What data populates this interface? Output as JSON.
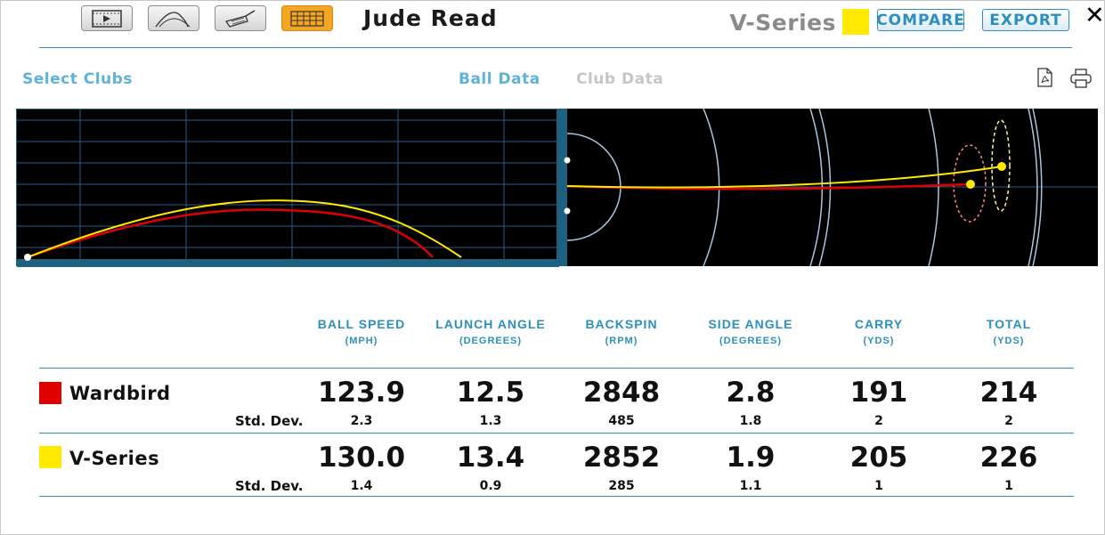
{
  "toolbar": {
    "buttons": [
      {
        "name": "video-view-button",
        "icon": "film-strip-icon",
        "active": false
      },
      {
        "name": "trajectory-view-button",
        "icon": "trajectory-arc-icon",
        "active": false
      },
      {
        "name": "club-view-button",
        "icon": "club-head-icon",
        "active": false
      },
      {
        "name": "table-view-button",
        "icon": "data-grid-icon",
        "active": true
      }
    ],
    "active_color": "#f6a623"
  },
  "header": {
    "player_name": "Jude Read",
    "club_name": "V-Series",
    "club_color": "#ffea00",
    "compare_label": "COMPARE",
    "export_label": "EXPORT",
    "close_glyph": "✕"
  },
  "subnav": {
    "select_clubs": "Select Clubs",
    "ball_data": "Ball Data",
    "club_data": "Club Data"
  },
  "columns": [
    {
      "title": "BALL SPEED",
      "unit": "(MPH)"
    },
    {
      "title": "LAUNCH ANGLE",
      "unit": "(DEGREES)"
    },
    {
      "title": "BACKSPIN",
      "unit": "(RPM)"
    },
    {
      "title": "SIDE ANGLE",
      "unit": "(DEGREES)"
    },
    {
      "title": "CARRY",
      "unit": "(YDS)"
    },
    {
      "title": "TOTAL",
      "unit": "(YDS)"
    }
  ],
  "rows": [
    {
      "name": "Wardbird",
      "color": "#e00000",
      "std_label": "Std. Dev.",
      "values": [
        "123.9",
        "12.5",
        "2848",
        "2.8",
        "191",
        "214"
      ],
      "std": [
        "2.3",
        "1.3",
        "485",
        "1.8",
        "2",
        "2"
      ]
    },
    {
      "name": "V-Series",
      "color": "#ffea00",
      "std_label": "Std. Dev.",
      "values": [
        "130.0",
        "13.4",
        "2852",
        "1.9",
        "205",
        "226"
      ],
      "std": [
        "1.4",
        "0.9",
        "285",
        "1.1",
        "1",
        "1"
      ]
    }
  ],
  "theme": {
    "accent": "#2c8fbf",
    "light_accent": "#5fb2d8",
    "chart_bg": "#000000",
    "grid": "#2a5a8c",
    "ground": "#1e6080"
  }
}
